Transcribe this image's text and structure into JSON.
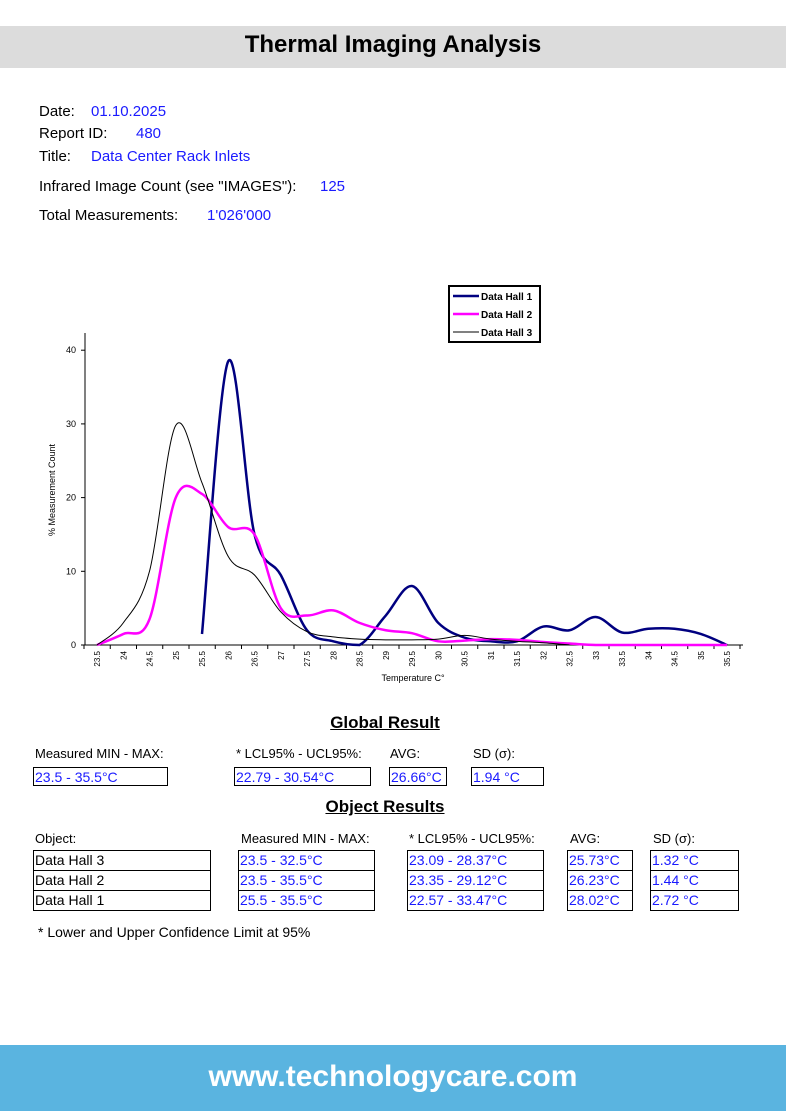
{
  "header": {
    "title": "Thermal Imaging Analysis"
  },
  "info": {
    "date_label": "Date:",
    "date": "01.10.2025",
    "report_label": "Report ID:",
    "report": "480",
    "title_label": "Title:",
    "title": "Data Center Rack Inlets",
    "images_label": "Infrared Image Count (see \"IMAGES\"):",
    "images": "125",
    "measurements_label": "Total Measurements:",
    "measurements": "1'026'000"
  },
  "chart_data": {
    "type": "line",
    "xlabel": "Temperature C°",
    "ylabel": "% Measurement Count",
    "ylim": [
      0,
      42
    ],
    "yticks": [
      0,
      10,
      20,
      30,
      40
    ],
    "categories": [
      "23.5",
      "24",
      "24.5",
      "25",
      "25.5",
      "26",
      "26.5",
      "27",
      "27.5",
      "28",
      "28.5",
      "29",
      "29.5",
      "30",
      "30.5",
      "31",
      "31.5",
      "32",
      "32.5",
      "33",
      "33.5",
      "34",
      "34.5",
      "35",
      "35.5"
    ],
    "legend_position": "top-right",
    "series": [
      {
        "name": "Data Hall 1",
        "color": "#000080",
        "values": [
          null,
          null,
          null,
          null,
          1.5,
          38.5,
          15,
          9.5,
          2,
          0.5,
          0,
          4,
          8,
          3,
          1,
          0.5,
          0.5,
          2.5,
          2,
          3.8,
          1.7,
          2.2,
          2.2,
          1.5,
          0
        ]
      },
      {
        "name": "Data Hall 2",
        "color": "#ff00ff",
        "values": [
          0,
          1.5,
          3.5,
          20,
          20.5,
          16,
          15,
          5,
          4,
          4.7,
          3,
          2,
          1.6,
          0.5,
          0.6,
          0.8,
          0.7,
          0.4,
          0.2,
          0,
          0,
          0,
          0,
          0,
          0
        ]
      },
      {
        "name": "Data Hall 3",
        "color": "#000000",
        "values": [
          0,
          3,
          10,
          29.8,
          22,
          12,
          9.5,
          4.5,
          1.8,
          1.1,
          0.8,
          0.7,
          0.7,
          0.8,
          1.3,
          0.8,
          0.5,
          0.3,
          0,
          null,
          null,
          null,
          null,
          null,
          null
        ]
      }
    ]
  },
  "global": {
    "heading": "Global Result",
    "labels": [
      "Measured MIN - MAX:",
      "* LCL95% - UCL95%:",
      "AVG:",
      "SD (σ):"
    ],
    "values": [
      "23.5 - 35.5°C",
      "22.79 - 30.54°C",
      "26.66°C",
      "1.94 °C"
    ]
  },
  "objects": {
    "heading": "Object Results",
    "labels": [
      "Object:",
      "Measured MIN - MAX:",
      "* LCL95% - UCL95%:",
      "AVG:",
      "SD (σ):"
    ],
    "rows": [
      [
        "Data Hall 3",
        "23.5 - 32.5°C",
        "23.09 - 28.37°C",
        "25.73°C",
        "1.32 °C"
      ],
      [
        "Data Hall 2",
        "23.5 - 35.5°C",
        "23.35 - 29.12°C",
        "26.23°C",
        "1.44 °C"
      ],
      [
        "Data Hall 1",
        "25.5 - 35.5°C",
        "22.57 - 33.47°C",
        "28.02°C",
        "2.72 °C"
      ]
    ],
    "footnote": "* Lower and Upper Confidence Limit at 95%"
  },
  "footer": {
    "url": "www.technologycare.com"
  }
}
